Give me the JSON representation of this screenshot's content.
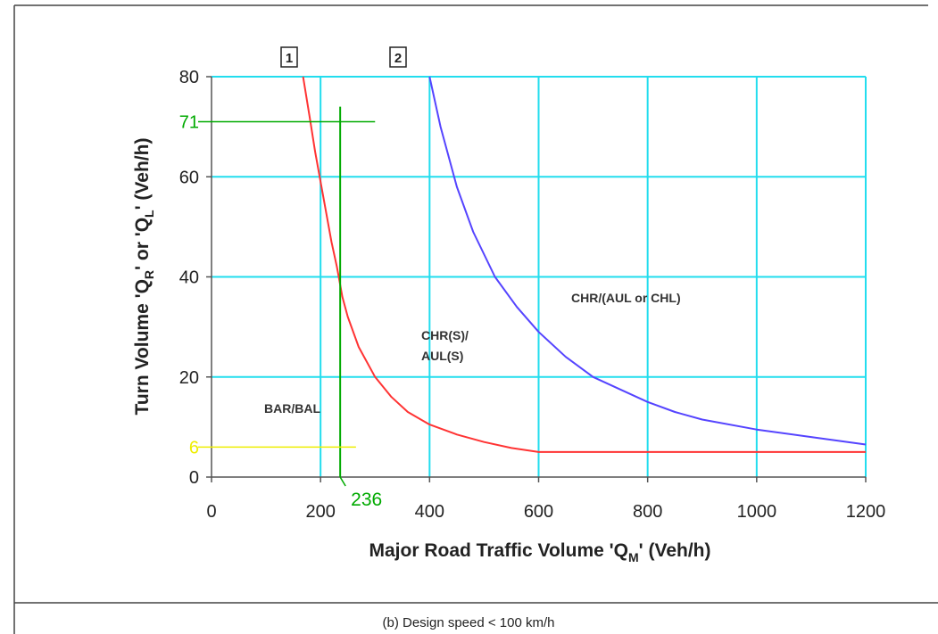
{
  "chart_data": {
    "type": "line",
    "xlabel_main": "Major Road Traffic Volume 'Q",
    "xlabel_sub": "M",
    "xlabel_end": "' (Veh/h)",
    "ylabel_main": "Turn Volume 'Q",
    "ylabel_sub1": "R",
    "ylabel_mid": "' or 'Q",
    "ylabel_sub2": "L",
    "ylabel_end": "' (Veh/h)",
    "xlim": [
      0,
      1200
    ],
    "ylim": [
      0,
      80
    ],
    "xticks": [
      0,
      200,
      400,
      600,
      800,
      1000,
      1200
    ],
    "yticks": [
      0,
      20,
      40,
      60,
      80
    ],
    "grid": true,
    "series": [
      {
        "name": "1",
        "color": "#ff3333",
        "x": [
          168,
          180,
          190,
          200,
          210,
          220,
          230,
          240,
          250,
          270,
          300,
          330,
          360,
          400,
          450,
          500,
          550,
          600,
          650,
          700,
          800,
          900,
          1000,
          1100,
          1200
        ],
        "y": [
          80,
          72,
          65,
          59,
          53,
          47,
          42,
          36,
          32,
          26,
          20,
          16,
          13,
          10.5,
          8.5,
          7,
          5.8,
          5,
          5,
          5,
          5,
          5,
          5,
          5,
          5
        ]
      },
      {
        "name": "2",
        "color": "#5544ff",
        "x": [
          400,
          420,
          450,
          480,
          520,
          560,
          600,
          650,
          700,
          750,
          800,
          850,
          900,
          1000,
          1100,
          1200
        ],
        "y": [
          80,
          70,
          58,
          49,
          40,
          34,
          29,
          24,
          20,
          17.5,
          15,
          13,
          11.5,
          9.5,
          8,
          6.5
        ]
      }
    ],
    "curve_tags": [
      "1",
      "2"
    ],
    "region_labels": {
      "bar": "BAR/BAL",
      "chr_s_line1": "CHR(S)/",
      "chr_s_line2": "AUL(S)",
      "chr": "CHR/(AUL or CHL)"
    },
    "annotations": {
      "x_marker_value": 236,
      "x_marker_label": "236",
      "y_marker_green": 71,
      "y_marker_green_label": "71",
      "y_marker_yellow": 6,
      "y_marker_yellow_label": "6",
      "green_color": "#00aa00",
      "yellow_color": "#eeee00",
      "grid_color": "#22ddee"
    }
  },
  "caption": "(b) Design speed < 100 km/h"
}
